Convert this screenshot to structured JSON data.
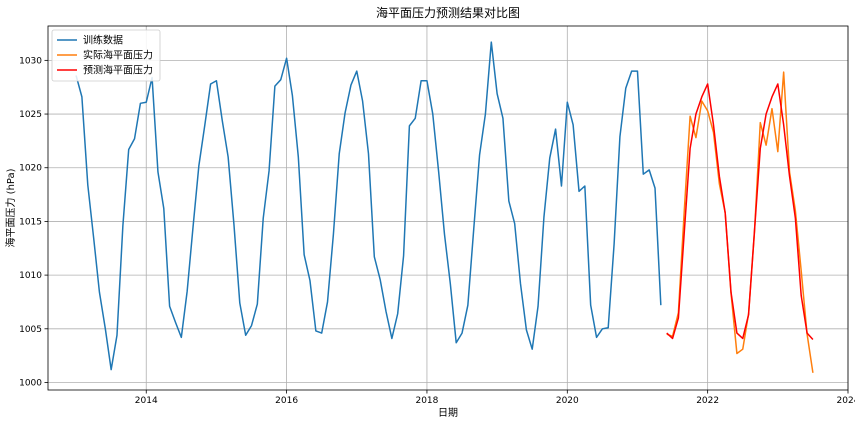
{
  "chart_data": {
    "type": "line",
    "title": "海平面压力预测结果对比图",
    "xlabel": "日期",
    "ylabel": "海平面压力 (hPa)",
    "x_unit": "year",
    "xlim": [
      2012.6,
      2024.0
    ],
    "ylim": [
      999.3,
      1033.2
    ],
    "x_ticks": [
      2014,
      2016,
      2018,
      2020,
      2022,
      2024
    ],
    "y_ticks": [
      1000,
      1005,
      1010,
      1015,
      1020,
      1025,
      1030
    ],
    "grid": true,
    "legend_position": "top-left",
    "series": [
      {
        "name": "训练数据",
        "color": "#1f77b4",
        "points": [
          [
            2013.0,
            1028.6
          ],
          [
            2013.083,
            1026.6
          ],
          [
            2013.167,
            1018.4
          ],
          [
            2013.25,
            1013.5
          ],
          [
            2013.333,
            1008.4
          ],
          [
            2013.417,
            1005.0
          ],
          [
            2013.5,
            1001.2
          ],
          [
            2013.583,
            1004.4
          ],
          [
            2013.667,
            1014.6
          ],
          [
            2013.75,
            1021.7
          ],
          [
            2013.833,
            1022.7
          ],
          [
            2013.917,
            1026.0
          ],
          [
            2014.0,
            1026.1
          ],
          [
            2014.083,
            1028.4
          ],
          [
            2014.167,
            1019.6
          ],
          [
            2014.25,
            1016.2
          ],
          [
            2014.333,
            1007.1
          ],
          [
            2014.417,
            1005.6
          ],
          [
            2014.5,
            1004.2
          ],
          [
            2014.583,
            1008.5
          ],
          [
            2014.667,
            1014.5
          ],
          [
            2014.75,
            1020.2
          ],
          [
            2014.833,
            1023.9
          ],
          [
            2014.917,
            1027.8
          ],
          [
            2015.0,
            1028.1
          ],
          [
            2015.083,
            1024.4
          ],
          [
            2015.167,
            1021.0
          ],
          [
            2015.25,
            1014.7
          ],
          [
            2015.333,
            1007.4
          ],
          [
            2015.417,
            1004.4
          ],
          [
            2015.5,
            1005.3
          ],
          [
            2015.583,
            1007.3
          ],
          [
            2015.667,
            1015.3
          ],
          [
            2015.75,
            1019.7
          ],
          [
            2015.833,
            1027.6
          ],
          [
            2015.917,
            1028.2
          ],
          [
            2016.0,
            1030.2
          ],
          [
            2016.083,
            1026.7
          ],
          [
            2016.167,
            1021.0
          ],
          [
            2016.25,
            1011.9
          ],
          [
            2016.333,
            1009.5
          ],
          [
            2016.417,
            1004.8
          ],
          [
            2016.5,
            1004.6
          ],
          [
            2016.583,
            1007.5
          ],
          [
            2016.667,
            1013.8
          ],
          [
            2016.75,
            1021.3
          ],
          [
            2016.833,
            1025.1
          ],
          [
            2016.917,
            1027.7
          ],
          [
            2017.0,
            1029.0
          ],
          [
            2017.083,
            1026.2
          ],
          [
            2017.167,
            1021.3
          ],
          [
            2017.25,
            1011.7
          ],
          [
            2017.333,
            1009.6
          ],
          [
            2017.417,
            1006.6
          ],
          [
            2017.5,
            1004.1
          ],
          [
            2017.583,
            1006.4
          ],
          [
            2017.667,
            1011.8
          ],
          [
            2017.75,
            1023.9
          ],
          [
            2017.833,
            1024.6
          ],
          [
            2017.917,
            1028.1
          ],
          [
            2018.0,
            1028.1
          ],
          [
            2018.083,
            1025.0
          ],
          [
            2018.167,
            1019.6
          ],
          [
            2018.25,
            1013.8
          ],
          [
            2018.333,
            1009.2
          ],
          [
            2018.417,
            1003.7
          ],
          [
            2018.5,
            1004.6
          ],
          [
            2018.583,
            1007.2
          ],
          [
            2018.667,
            1014.3
          ],
          [
            2018.75,
            1021.2
          ],
          [
            2018.833,
            1025.0
          ],
          [
            2018.917,
            1031.7
          ],
          [
            2019.0,
            1026.9
          ],
          [
            2019.083,
            1024.6
          ],
          [
            2019.167,
            1016.9
          ],
          [
            2019.25,
            1014.8
          ],
          [
            2019.333,
            1009.2
          ],
          [
            2019.417,
            1004.9
          ],
          [
            2019.5,
            1003.1
          ],
          [
            2019.583,
            1007.1
          ],
          [
            2019.667,
            1015.4
          ],
          [
            2019.75,
            1020.9
          ],
          [
            2019.833,
            1023.6
          ],
          [
            2019.917,
            1018.3
          ],
          [
            2020.0,
            1026.1
          ],
          [
            2020.083,
            1024.0
          ],
          [
            2020.167,
            1017.8
          ],
          [
            2020.25,
            1018.3
          ],
          [
            2020.333,
            1007.2
          ],
          [
            2020.417,
            1004.2
          ],
          [
            2020.5,
            1005.0
          ],
          [
            2020.583,
            1005.1
          ],
          [
            2020.667,
            1012.9
          ],
          [
            2020.75,
            1022.9
          ],
          [
            2020.833,
            1027.4
          ],
          [
            2020.917,
            1029.0
          ],
          [
            2021.0,
            1029.0
          ],
          [
            2021.083,
            1019.4
          ],
          [
            2021.167,
            1019.8
          ],
          [
            2021.25,
            1018.1
          ],
          [
            2021.333,
            1007.2
          ]
        ]
      },
      {
        "name": "实际海平面压力",
        "color": "#ff7f0e",
        "points": [
          [
            2021.417,
            1004.5
          ],
          [
            2021.5,
            1004.3
          ],
          [
            2021.583,
            1006.5
          ],
          [
            2021.667,
            1016.0
          ],
          [
            2021.75,
            1024.8
          ],
          [
            2021.833,
            1022.8
          ],
          [
            2021.917,
            1026.2
          ],
          [
            2022.0,
            1025.3
          ],
          [
            2022.083,
            1023.3
          ],
          [
            2022.167,
            1018.5
          ],
          [
            2022.25,
            1015.8
          ],
          [
            2022.333,
            1008.3
          ],
          [
            2022.417,
            1002.7
          ],
          [
            2022.5,
            1003.1
          ],
          [
            2022.583,
            1006.4
          ],
          [
            2022.667,
            1014.0
          ],
          [
            2022.75,
            1024.2
          ],
          [
            2022.833,
            1022.1
          ],
          [
            2022.917,
            1025.5
          ],
          [
            2023.0,
            1021.5
          ],
          [
            2023.083,
            1028.9
          ],
          [
            2023.167,
            1019.6
          ],
          [
            2023.25,
            1016.0
          ],
          [
            2023.333,
            1010.4
          ],
          [
            2023.417,
            1004.5
          ],
          [
            2023.5,
            1000.9
          ]
        ]
      },
      {
        "name": "预测海平面压力",
        "color": "#ff0000",
        "points": [
          [
            2021.417,
            1004.6
          ],
          [
            2021.5,
            1004.1
          ],
          [
            2021.583,
            1006.0
          ],
          [
            2021.667,
            1014.0
          ],
          [
            2021.75,
            1021.8
          ],
          [
            2021.833,
            1025.0
          ],
          [
            2021.917,
            1026.6
          ],
          [
            2022.0,
            1027.8
          ],
          [
            2022.083,
            1024.0
          ],
          [
            2022.167,
            1019.2
          ],
          [
            2022.25,
            1015.8
          ],
          [
            2022.333,
            1008.4
          ],
          [
            2022.417,
            1004.6
          ],
          [
            2022.5,
            1004.1
          ],
          [
            2022.583,
            1006.3
          ],
          [
            2022.667,
            1014.1
          ],
          [
            2022.75,
            1021.8
          ],
          [
            2022.833,
            1025.0
          ],
          [
            2022.917,
            1026.6
          ],
          [
            2023.0,
            1027.8
          ],
          [
            2023.083,
            1024.0
          ],
          [
            2023.167,
            1019.2
          ],
          [
            2023.25,
            1015.3
          ],
          [
            2023.333,
            1008.1
          ],
          [
            2023.417,
            1004.6
          ],
          [
            2023.5,
            1004.0
          ]
        ]
      }
    ]
  }
}
